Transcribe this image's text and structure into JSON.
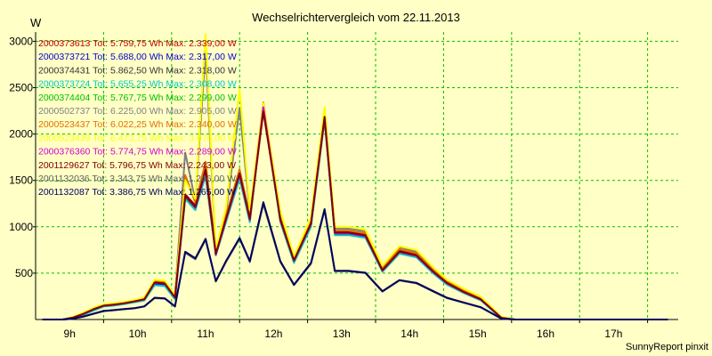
{
  "chart_data": {
    "type": "line",
    "title": "Wechselrichtervergleich vom 22.11.2013",
    "unit_label": "W",
    "credit": "SunnyReport pinxit",
    "x_tick_labels": [
      "9h",
      "10h",
      "11h",
      "12h",
      "13h",
      "14h",
      "15h",
      "16h",
      "17h"
    ],
    "x_ticks": [
      9,
      10,
      11,
      12,
      13,
      14,
      15,
      16,
      17
    ],
    "xlim": [
      8.5,
      17.95
    ],
    "ylim": [
      0,
      3100
    ],
    "y_ticks": [
      500,
      1000,
      1500,
      2000,
      2500,
      3000
    ],
    "grid": true,
    "legend_placement": "top-left",
    "x": [
      8.6,
      8.75,
      8.9,
      9.05,
      9.2,
      9.35,
      9.5,
      9.65,
      9.8,
      9.95,
      10.1,
      10.25,
      10.4,
      10.55,
      10.7,
      10.85,
      11.0,
      11.15,
      11.3,
      11.5,
      11.65,
      11.85,
      12.1,
      12.3,
      12.55,
      12.75,
      12.9,
      13.1,
      13.35,
      13.6,
      13.85,
      14.1,
      14.35,
      14.55,
      14.8,
      15.05,
      15.35,
      15.55,
      15.8,
      16.05,
      16.3,
      16.55,
      16.8,
      17.1,
      17.35,
      17.6,
      17.8
    ],
    "series": [
      {
        "name": "2000373613 Tot: 5.759,75 Wh Max: 2.339,00 W",
        "color": "#c00000",
        "values": [
          0,
          0,
          0,
          20,
          60,
          110,
          150,
          160,
          175,
          195,
          220,
          400,
          390,
          240,
          1350,
          1230,
          1650,
          720,
          1100,
          1600,
          1100,
          2320,
          1100,
          650,
          1050,
          2200,
          950,
          950,
          920,
          540,
          740,
          700,
          520,
          400,
          300,
          220,
          20,
          0,
          0,
          0,
          0,
          0,
          0,
          0,
          0,
          0,
          0
        ]
      },
      {
        "name": "2000373721 Tot: 5.688,00 Wh Max: 2.317,00 W",
        "color": "#0000d0",
        "values": [
          0,
          0,
          0,
          15,
          55,
          100,
          145,
          155,
          170,
          190,
          210,
          380,
          370,
          225,
          1310,
          1190,
          1560,
          700,
          1060,
          1540,
          1060,
          2300,
          1060,
          620,
          1010,
          2160,
          920,
          920,
          890,
          520,
          720,
          680,
          500,
          380,
          290,
          210,
          15,
          0,
          0,
          0,
          0,
          0,
          0,
          0,
          0,
          0,
          0
        ]
      },
      {
        "name": "2000374431 Tot: 5.862,50 Wh Max: 2.318,00 W",
        "color": "#333333",
        "values": [
          0,
          0,
          0,
          22,
          62,
          112,
          152,
          162,
          178,
          198,
          222,
          405,
          395,
          242,
          1340,
          1220,
          1620,
          710,
          1090,
          1580,
          1090,
          2310,
          1080,
          640,
          1040,
          2190,
          940,
          940,
          910,
          530,
          735,
          690,
          515,
          395,
          298,
          218,
          18,
          0,
          0,
          0,
          0,
          0,
          0,
          0,
          0,
          0,
          0
        ]
      },
      {
        "name": "2000373724 Tot: 5.655,25 Wh Max: 2.308,00 W",
        "color": "#00c8c8",
        "values": [
          0,
          0,
          0,
          10,
          50,
          95,
          140,
          150,
          165,
          185,
          205,
          370,
          360,
          220,
          1300,
          1180,
          1550,
          690,
          1050,
          1520,
          1050,
          2290,
          1050,
          610,
          1000,
          2150,
          910,
          910,
          880,
          515,
          710,
          670,
          495,
          375,
          285,
          205,
          12,
          0,
          0,
          0,
          0,
          0,
          0,
          0,
          0,
          0,
          0
        ]
      },
      {
        "name": "2000374404 Tot: 5.767,75 Wh Max: 2.299,00 W",
        "color": "#00c000",
        "values": [
          0,
          0,
          0,
          20,
          60,
          108,
          150,
          160,
          175,
          195,
          218,
          398,
          388,
          238,
          1320,
          1210,
          1610,
          705,
          1080,
          1570,
          1080,
          2290,
          1075,
          635,
          1030,
          2180,
          935,
          935,
          905,
          530,
          730,
          688,
          512,
          392,
          296,
          216,
          18,
          0,
          0,
          0,
          0,
          0,
          0,
          0,
          0,
          0,
          0
        ]
      },
      {
        "name": "2000502737 Tot: 6.225,00 Wh Max: 2.905,00 W",
        "color": "#808080",
        "values": [
          0,
          0,
          0,
          25,
          70,
          120,
          160,
          170,
          185,
          205,
          235,
          420,
          410,
          255,
          1800,
          1280,
          2900,
          740,
          1150,
          2280,
          1150,
          2300,
          1140,
          660,
          1080,
          2250,
          980,
          980,
          950,
          560,
          780,
          730,
          540,
          420,
          320,
          235,
          25,
          0,
          0,
          0,
          0,
          0,
          0,
          0,
          0,
          0,
          0
        ]
      },
      {
        "name": "2000523437 Tot: 6.022,25 Wh Max: 2.340,00 W",
        "color": "#e07000",
        "values": [
          0,
          0,
          0,
          24,
          66,
          116,
          156,
          166,
          180,
          200,
          228,
          410,
          400,
          248,
          1560,
          1260,
          1700,
          730,
          1120,
          1620,
          1120,
          2340,
          1110,
          650,
          1060,
          2220,
          960,
          960,
          930,
          545,
          760,
          715,
          530,
          410,
          310,
          228,
          22,
          0,
          0,
          0,
          0,
          0,
          0,
          0,
          0,
          0,
          0
        ]
      },
      {
        "name": "2000523439 Tot: 6.473,75 Wh Max: 3.076,00 W",
        "color": "#ffff00",
        "values": [
          0,
          0,
          0,
          28,
          75,
          125,
          165,
          175,
          190,
          210,
          240,
          430,
          420,
          260,
          1500,
          1300,
          3076,
          760,
          1200,
          2490,
          1180,
          2330,
          1170,
          680,
          1100,
          2290,
          1000,
          1000,
          970,
          580,
          790,
          750,
          560,
          430,
          330,
          245,
          28,
          0,
          0,
          0,
          0,
          0,
          0,
          0,
          0,
          0,
          0
        ]
      },
      {
        "name": "2000376360 Tot: 5.774,75 Wh Max: 2.289,00 W",
        "color": "#d000d0",
        "values": [
          0,
          0,
          0,
          20,
          58,
          108,
          148,
          158,
          174,
          194,
          216,
          396,
          386,
          236,
          1330,
          1205,
          1600,
          700,
          1075,
          1560,
          1075,
          2289,
          1070,
          632,
          1028,
          2170,
          930,
          930,
          900,
          528,
          728,
          686,
          510,
          390,
          294,
          214,
          17,
          0,
          0,
          0,
          0,
          0,
          0,
          0,
          0,
          0,
          0
        ]
      },
      {
        "name": "2001129627 Tot: 5.796,75 Wh Max: 2.243,00 W",
        "color": "#800000",
        "values": [
          0,
          0,
          0,
          21,
          60,
          110,
          150,
          160,
          176,
          196,
          219,
          399,
          389,
          239,
          1335,
          1215,
          1615,
          708,
          1085,
          1575,
          1085,
          2243,
          1080,
          638,
          1035,
          2185,
          938,
          938,
          908,
          532,
          733,
          692,
          514,
          394,
          297,
          217,
          18,
          0,
          0,
          0,
          0,
          0,
          0,
          0,
          0,
          0,
          0
        ]
      },
      {
        "name": "2001132036 Tot: 3.343,75 Wh Max: 1.246,00 W",
        "color": "#606060",
        "values": [
          0,
          0,
          0,
          10,
          30,
          60,
          90,
          100,
          110,
          120,
          140,
          230,
          225,
          140,
          720,
          650,
          860,
          410,
          620,
          870,
          620,
          1246,
          620,
          370,
          600,
          1180,
          520,
          520,
          500,
          300,
          420,
          390,
          300,
          230,
          180,
          130,
          10,
          0,
          0,
          0,
          0,
          0,
          0,
          0,
          0,
          0,
          0
        ]
      },
      {
        "name": "2001132087 Tot: 3.386,75 Wh Max: 1.265,00 W",
        "color": "#000060",
        "values": [
          0,
          0,
          0,
          10,
          32,
          62,
          92,
          102,
          112,
          122,
          142,
          235,
          228,
          142,
          730,
          660,
          870,
          415,
          630,
          880,
          630,
          1265,
          630,
          375,
          610,
          1190,
          525,
          525,
          505,
          305,
          425,
          395,
          305,
          235,
          182,
          132,
          10,
          0,
          0,
          0,
          0,
          0,
          0,
          0,
          0,
          0,
          0
        ]
      }
    ]
  }
}
